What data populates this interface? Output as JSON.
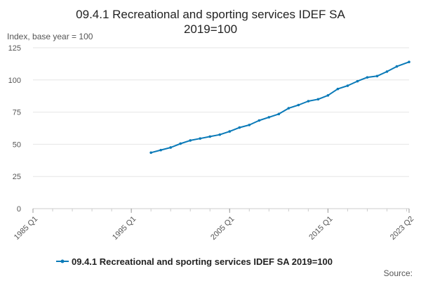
{
  "chart_data": {
    "type": "line",
    "title_lines": [
      "09.4.1 Recreational and sporting services IDEF SA",
      "2019=100"
    ],
    "unit_label": "Index, base year = 100",
    "x_tick_labels": [
      "1985 Q1",
      "1995 Q1",
      "2005 Q1",
      "2015 Q1",
      "2023 Q2"
    ],
    "x_range": [
      "1985 Q1",
      "2023 Q2"
    ],
    "y_ticks": [
      0,
      25,
      50,
      75,
      100,
      125
    ],
    "ylim": [
      0,
      125
    ],
    "grid": true,
    "legend_position": "bottom",
    "source_label": "Source:",
    "colors": {
      "series": "#0a7ab8",
      "grid": "#e6e6e6",
      "axis": "#cccccc"
    },
    "series": [
      {
        "name": "09.4.1 Recreational and sporting services IDEF SA 2019=100",
        "points": [
          [
            "1997 Q1",
            43.5
          ],
          [
            "1998 Q1",
            45.5
          ],
          [
            "1999 Q1",
            47.5
          ],
          [
            "2000 Q1",
            50.5
          ],
          [
            "2001 Q1",
            53.0
          ],
          [
            "2002 Q1",
            54.5
          ],
          [
            "2003 Q1",
            56.0
          ],
          [
            "2004 Q1",
            57.5
          ],
          [
            "2005 Q1",
            60.0
          ],
          [
            "2006 Q1",
            63.0
          ],
          [
            "2007 Q1",
            65.0
          ],
          [
            "2008 Q1",
            68.5
          ],
          [
            "2009 Q1",
            71.0
          ],
          [
            "2010 Q1",
            73.5
          ],
          [
            "2011 Q1",
            78.0
          ],
          [
            "2012 Q1",
            80.5
          ],
          [
            "2013 Q1",
            83.5
          ],
          [
            "2014 Q1",
            85.0
          ],
          [
            "2015 Q1",
            88.0
          ],
          [
            "2016 Q1",
            93.0
          ],
          [
            "2017 Q1",
            95.5
          ],
          [
            "2018 Q1",
            99.0
          ],
          [
            "2019 Q1",
            102.0
          ],
          [
            "2020 Q1",
            103.0
          ],
          [
            "2021 Q1",
            106.5
          ],
          [
            "2022 Q1",
            110.5
          ],
          [
            "2023 Q2",
            114.0
          ]
        ]
      }
    ]
  }
}
